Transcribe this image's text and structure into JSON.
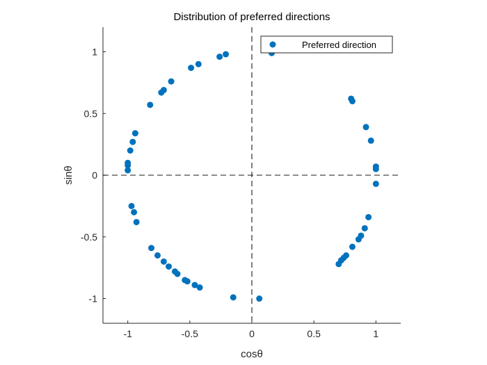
{
  "chart_data": {
    "type": "scatter",
    "title": "Distribution of preferred directions",
    "xlabel": "cosθ",
    "ylabel": "sinθ",
    "xlim": [
      -1.2,
      1.2
    ],
    "ylim": [
      -1.2,
      1.2
    ],
    "xticks": [
      -1,
      -0.5,
      0,
      0.5,
      1
    ],
    "yticks": [
      -1,
      -0.5,
      0,
      0.5,
      1
    ],
    "xtick_labels": [
      "-1",
      "-0.5",
      "0",
      "0.5",
      "1"
    ],
    "ytick_labels": [
      "-1",
      "-0.5",
      "0",
      "0.5",
      "1"
    ],
    "grid": false,
    "reference_lines": [
      {
        "orientation": "horizontal",
        "value": 0,
        "style": "dashed"
      },
      {
        "orientation": "vertical",
        "value": 0,
        "style": "dashed"
      }
    ],
    "legend": {
      "position": "top-right",
      "entries": [
        "Preferred direction"
      ]
    },
    "series": [
      {
        "name": "Preferred direction",
        "color": "#0072BD",
        "points": [
          [
            0.16,
            0.99
          ],
          [
            -0.21,
            0.98
          ],
          [
            -0.26,
            0.96
          ],
          [
            -0.43,
            0.9
          ],
          [
            -0.49,
            0.87
          ],
          [
            -0.65,
            0.76
          ],
          [
            -0.71,
            0.69
          ],
          [
            -0.73,
            0.67
          ],
          [
            -0.82,
            0.57
          ],
          [
            -0.94,
            0.34
          ],
          [
            -0.96,
            0.27
          ],
          [
            -0.98,
            0.2
          ],
          [
            -1.0,
            0.1
          ],
          [
            -1.0,
            0.08
          ],
          [
            -1.0,
            0.04
          ],
          [
            -0.97,
            -0.25
          ],
          [
            -0.95,
            -0.3
          ],
          [
            -0.93,
            -0.38
          ],
          [
            -0.81,
            -0.59
          ],
          [
            -0.76,
            -0.65
          ],
          [
            -0.71,
            -0.7
          ],
          [
            -0.67,
            -0.74
          ],
          [
            -0.62,
            -0.78
          ],
          [
            -0.6,
            -0.8
          ],
          [
            -0.54,
            -0.85
          ],
          [
            -0.52,
            -0.86
          ],
          [
            -0.46,
            -0.89
          ],
          [
            -0.42,
            -0.91
          ],
          [
            -0.15,
            -0.99
          ],
          [
            0.06,
            -1.0
          ],
          [
            0.8,
            0.62
          ],
          [
            0.81,
            0.6
          ],
          [
            0.92,
            0.39
          ],
          [
            0.96,
            0.28
          ],
          [
            1.0,
            0.07
          ],
          [
            1.0,
            0.05
          ],
          [
            1.0,
            -0.07
          ],
          [
            0.94,
            -0.34
          ],
          [
            0.91,
            -0.43
          ],
          [
            0.88,
            -0.49
          ],
          [
            0.86,
            -0.52
          ],
          [
            0.81,
            -0.58
          ],
          [
            0.76,
            -0.65
          ],
          [
            0.74,
            -0.67
          ],
          [
            0.72,
            -0.69
          ],
          [
            0.7,
            -0.72
          ]
        ]
      }
    ]
  }
}
